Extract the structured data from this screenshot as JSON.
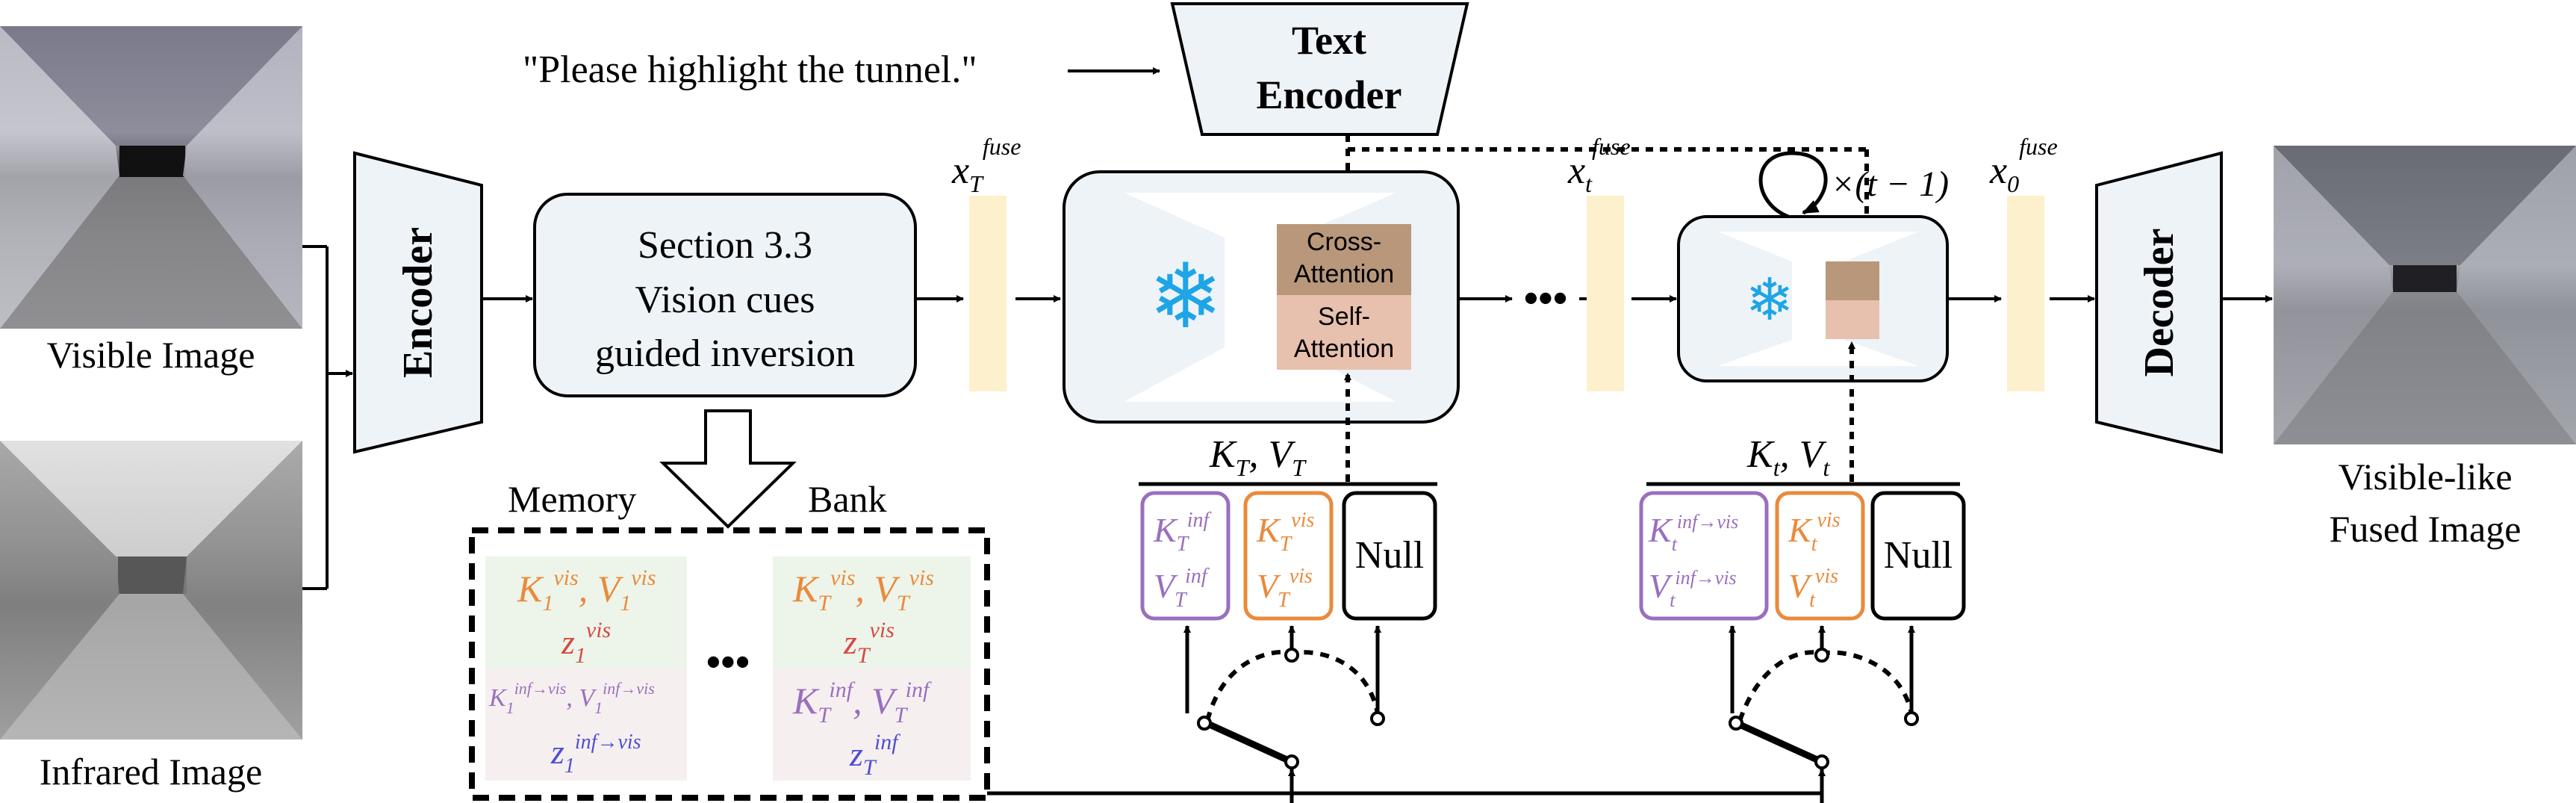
{
  "prompt": "\"Please highlight the tunnel.\"",
  "text_encoder": [
    "Text",
    "Encoder"
  ],
  "encoder": "Encoder",
  "decoder": "Decoder",
  "visible_image": "Visible Image",
  "infrared_image": "Infrared Image",
  "output_image": [
    "Visible-like",
    "Fused Image"
  ],
  "inversion_box": [
    "Section 3.3",
    "Vision cues",
    "guided inversion"
  ],
  "memory_bank": {
    "left": "Memory",
    "right": "Bank"
  },
  "cross_attention": [
    "Cross-",
    "Attention"
  ],
  "self_attention": [
    "Self-",
    "Attention"
  ],
  "null_label": "Null",
  "ellipsis": "•••",
  "colors": {
    "purple": "#9a6fbe",
    "orange": "#ea8a3c",
    "red": "#d9483e",
    "blue": "#4f4fd0",
    "latent": "#fdf0cc",
    "panel": "#edf3f7",
    "cross": "#b8977a",
    "self": "#e8c0ae",
    "green": "#edf5ea",
    "pink": "#f6eff0",
    "snow": "#1ea5e6"
  }
}
